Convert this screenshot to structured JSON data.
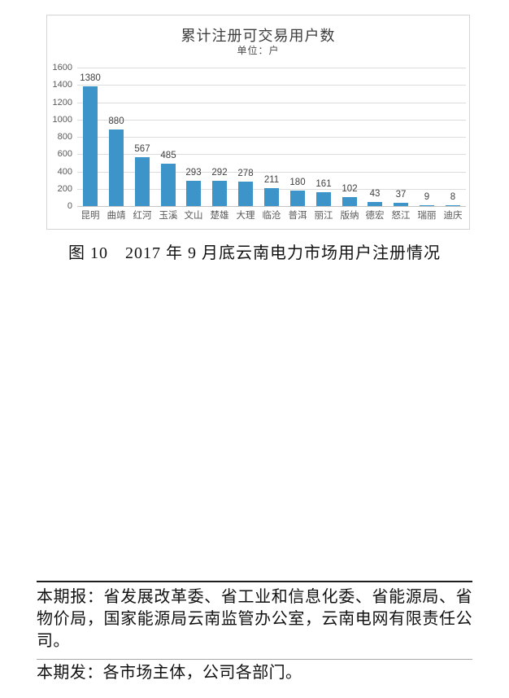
{
  "chart_data": {
    "type": "bar",
    "title": "累计注册可交易用户数",
    "subtitle": "单位：户",
    "categories": [
      "昆明",
      "曲靖",
      "红河",
      "玉溪",
      "文山",
      "楚雄",
      "大理",
      "临沧",
      "普洱",
      "丽江",
      "版纳",
      "德宏",
      "怒江",
      "瑞丽",
      "迪庆"
    ],
    "values": [
      1380,
      880,
      567,
      485,
      293,
      292,
      278,
      211,
      180,
      161,
      102,
      43,
      37,
      9,
      8
    ],
    "xlabel": "",
    "ylabel": "",
    "ylim": [
      0,
      1600
    ],
    "yticks": [
      0,
      200,
      400,
      600,
      800,
      1000,
      1200,
      1400,
      1600
    ],
    "grid": true,
    "legend_position": "none",
    "bar_color": "#3c94c8"
  },
  "caption": "图 10　2017 年 9 月底云南电力市场用户注册情况",
  "footer": {
    "report_lines": [
      "本期报：省发展改革委、省工业和信息化委、省能源局、省",
      "物价局，国家能源局云南监管办公室，云南电网有限责任公",
      "司。"
    ],
    "send_line": "本期发：各市场主体，公司各部门。"
  },
  "colors": {
    "bar": "#3c94c8",
    "grid_line": "#dcdcdc",
    "axis_text": "#595959",
    "chart_border": "#d4d4d4",
    "rule_thick": "#1e1e1e",
    "rule_thin": "#aaaaaa"
  }
}
